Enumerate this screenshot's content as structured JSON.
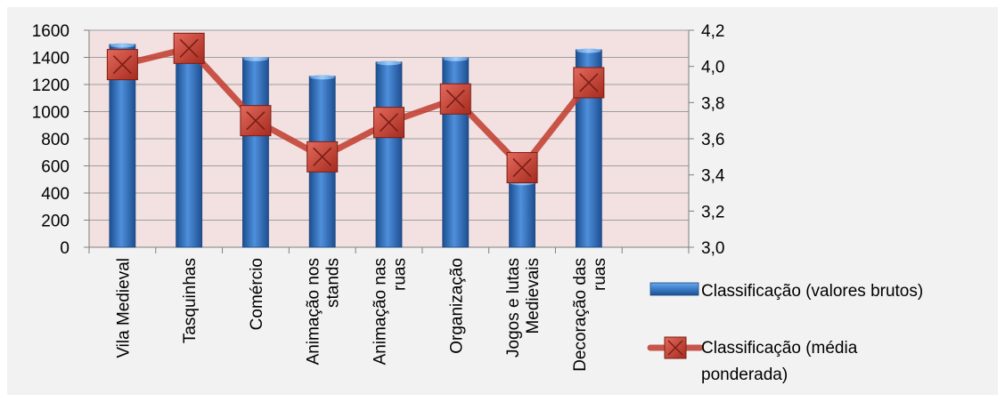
{
  "chart_data": {
    "type": "bar",
    "categories": [
      [
        "Vila Medieval"
      ],
      [
        "Tasquinhas"
      ],
      [
        "Comércio"
      ],
      [
        "Animação nos",
        "stands"
      ],
      [
        "Animação nas",
        "ruas"
      ],
      [
        "Organização"
      ],
      [
        "Jogos e lutas",
        "Medievais"
      ],
      [
        "Decoração das",
        "ruas"
      ],
      [
        ""
      ]
    ],
    "series": [
      {
        "name": "Classificação (valores brutos)",
        "type": "bar",
        "axis": "left",
        "color": "#2e6db4",
        "values": [
          1495,
          1500,
          1395,
          1260,
          1365,
          1395,
          480,
          1455,
          null
        ]
      },
      {
        "name": "Classificação (média ponderada)",
        "type": "line",
        "axis": "right",
        "color": "#c0392b",
        "values": [
          4.01,
          4.1,
          3.7,
          3.5,
          3.69,
          3.82,
          3.44,
          3.91,
          null
        ]
      }
    ],
    "y_left": {
      "min": 0,
      "max": 1600,
      "step": 200,
      "tick_labels": [
        "0",
        "200",
        "400",
        "600",
        "800",
        "1000",
        "1200",
        "1400",
        "1600"
      ]
    },
    "y_right": {
      "min": 3.0,
      "max": 4.2,
      "step": 0.2,
      "tick_labels": [
        "3,0",
        "3,2",
        "3,4",
        "3,6",
        "3,8",
        "4,0",
        "4,2"
      ]
    },
    "legend": {
      "position": "right",
      "entries": [
        {
          "kind": "bar",
          "lines": [
            "Classificação (valores brutos)"
          ]
        },
        {
          "kind": "line",
          "lines": [
            "Classificação (média",
            "ponderada)"
          ]
        }
      ]
    },
    "grid": "horizontal",
    "title": "",
    "xlabel": "",
    "ylabel": ""
  }
}
